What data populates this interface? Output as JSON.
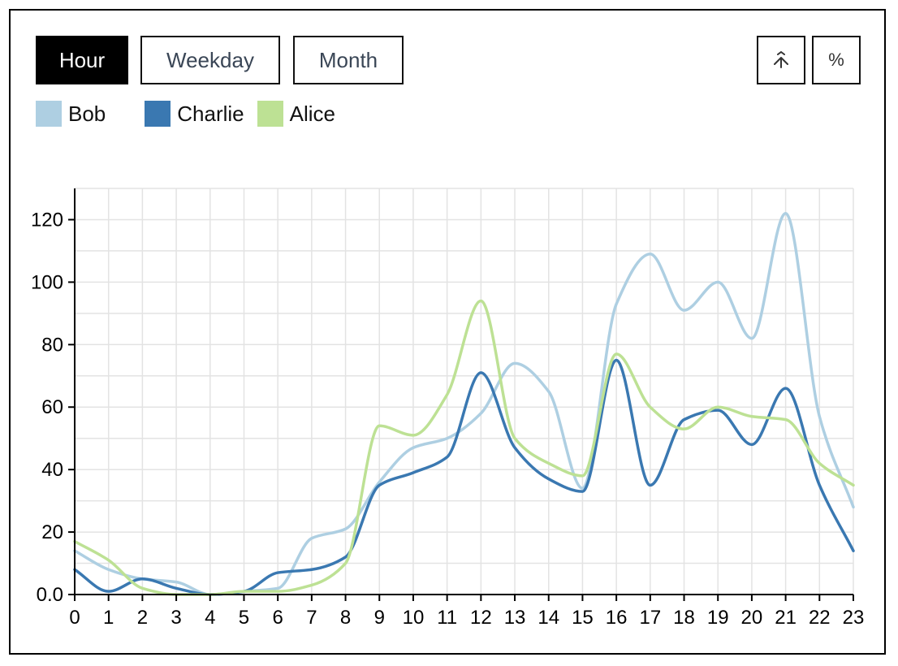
{
  "controls": {
    "tabs": [
      {
        "label": "Hour",
        "active": true
      },
      {
        "label": "Weekday",
        "active": false
      },
      {
        "label": "Month",
        "active": false
      }
    ],
    "icons": [
      "stack-merge-icon",
      "percent-icon"
    ],
    "percent_glyph": "%"
  },
  "colors": {
    "Bob": "#aecfe2",
    "Charlie": "#3a78b1",
    "Alice": "#bde194",
    "active_tab_bg": "#000000"
  },
  "chart_data": {
    "type": "line",
    "title": "",
    "xlabel": "",
    "ylabel": "",
    "x": [
      0,
      1,
      2,
      3,
      4,
      5,
      6,
      7,
      8,
      9,
      10,
      11,
      12,
      13,
      14,
      15,
      16,
      17,
      18,
      19,
      20,
      21,
      22,
      23
    ],
    "xlim": [
      0,
      23
    ],
    "ylim": [
      0,
      130
    ],
    "yticks": [
      "0.0",
      "20",
      "40",
      "60",
      "80",
      "100",
      "120"
    ],
    "ytick_values": [
      0,
      20,
      40,
      60,
      80,
      100,
      120
    ],
    "grid": true,
    "legend_position": "top-left",
    "series": [
      {
        "name": "Bob",
        "values": [
          14,
          8,
          5,
          4,
          0,
          1,
          2,
          18,
          21,
          36,
          47,
          50,
          58,
          74,
          65,
          34,
          93,
          109,
          91,
          100,
          82,
          122,
          57,
          28
        ]
      },
      {
        "name": "Charlie",
        "values": [
          8,
          1,
          5,
          2,
          0,
          1,
          7,
          8,
          12,
          35,
          39,
          44,
          71,
          47,
          37,
          33,
          75,
          35,
          56,
          59,
          48,
          66,
          35,
          14
        ]
      },
      {
        "name": "Alice",
        "values": [
          17,
          11,
          2,
          0,
          0,
          1,
          1,
          3,
          10,
          54,
          51,
          64,
          94,
          50,
          42,
          38,
          77,
          60,
          53,
          60,
          57,
          56,
          42,
          35
        ]
      }
    ]
  }
}
